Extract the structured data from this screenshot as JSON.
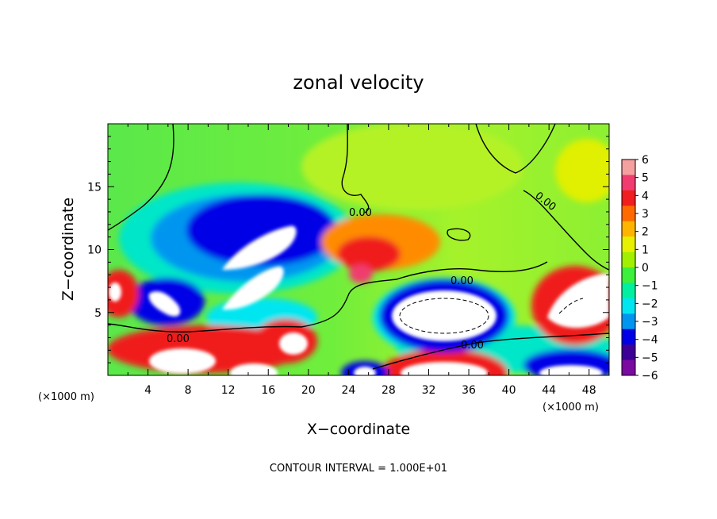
{
  "chart_data": {
    "type": "heatmap",
    "title": "zonal velocity",
    "xlabel": "X−coordinate",
    "ylabel": "Z−coordinate",
    "x_unit_left": "(×1000 m)",
    "x_unit_right": "(×1000 m)",
    "xlim": [
      0,
      50
    ],
    "ylim": [
      0,
      20
    ],
    "x_ticks": [
      "4",
      "8",
      "12",
      "16",
      "20",
      "24",
      "28",
      "32",
      "36",
      "40",
      "44",
      "48"
    ],
    "y_ticks": [
      "5",
      "10",
      "15"
    ],
    "contour_label": "0.00",
    "contour_interval_text": "CONTOUR INTERVAL = 1.000E+01",
    "colorbar": {
      "labels": [
        "6",
        "5",
        "4",
        "3",
        "2",
        "1",
        "0",
        "−1",
        "−2",
        "−3",
        "−4",
        "−5",
        "−6"
      ],
      "colors": [
        "#f5a0a0",
        "#f03c6e",
        "#f01e1e",
        "#ff6a00",
        "#ffb400",
        "#e6f000",
        "#a0f000",
        "#3cf03c",
        "#00f0a0",
        "#00e6f0",
        "#0096f0",
        "#0000e6",
        "#3c0096",
        "#7a0aa0"
      ]
    },
    "grid": false,
    "legend_position": "right"
  }
}
